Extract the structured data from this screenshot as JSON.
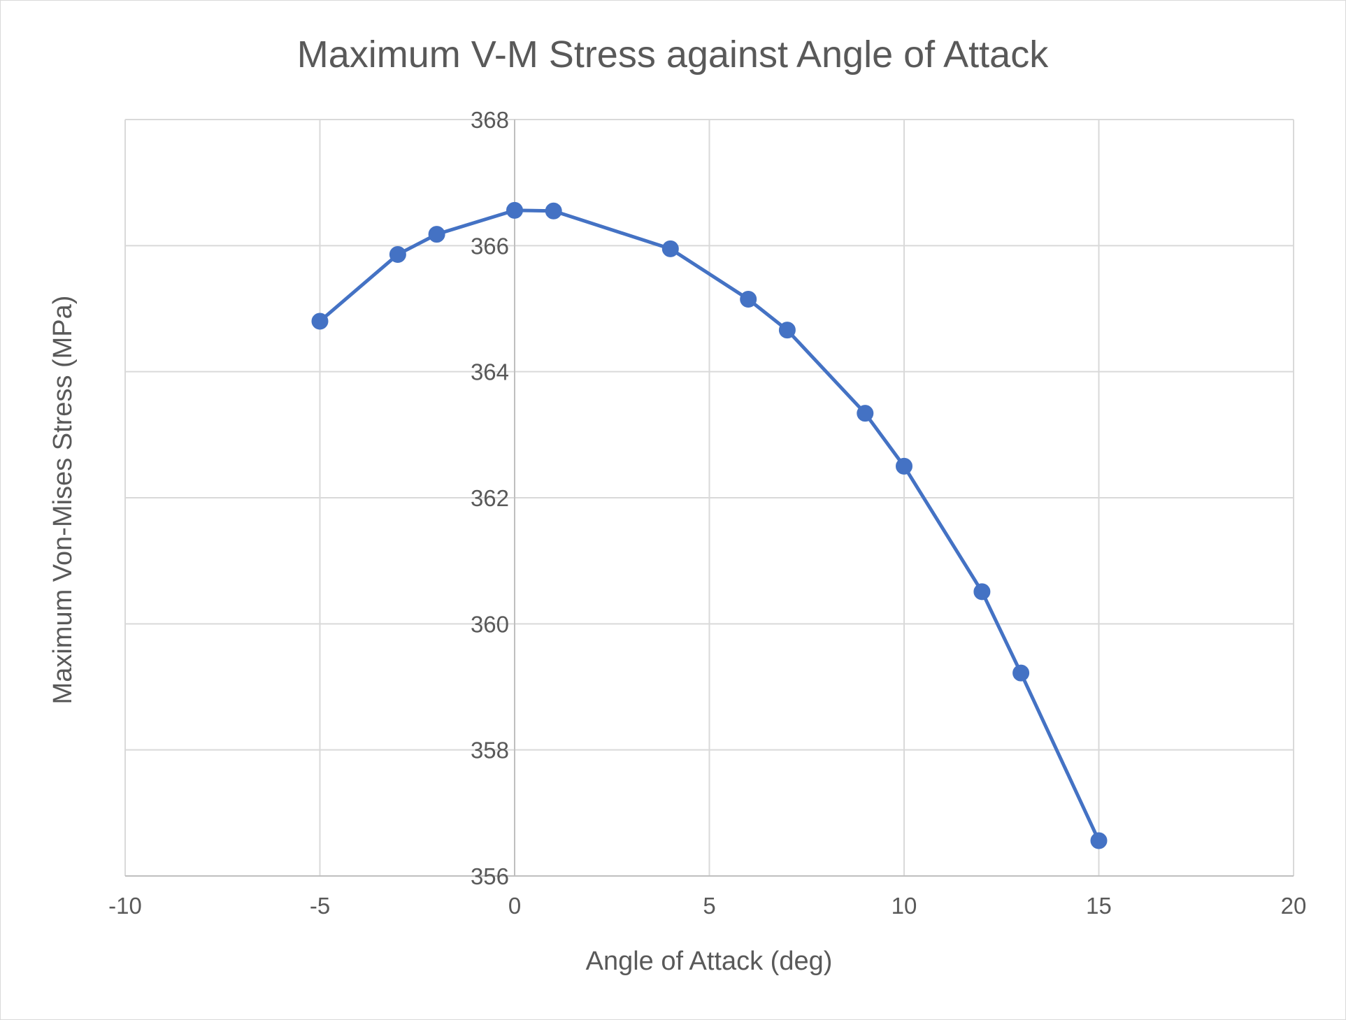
{
  "chart_data": {
    "type": "scatter",
    "mode": "lines+markers",
    "title": "Maximum V-M Stress against Angle of Attack",
    "xlabel": "Angle of Attack (deg)",
    "ylabel": "Maximum Von-Mises Stress (MPa)",
    "xlim": [
      -10,
      20
    ],
    "ylim": [
      356,
      368
    ],
    "xticks": [
      -10,
      -5,
      0,
      5,
      10,
      15,
      20
    ],
    "yticks": [
      356,
      358,
      360,
      362,
      364,
      366,
      368
    ],
    "grid": true,
    "legend": "none",
    "series": [
      {
        "color": "#4472c4",
        "points": [
          {
            "x": -5,
            "y": 364.8
          },
          {
            "x": -3,
            "y": 365.86
          },
          {
            "x": -2,
            "y": 366.18
          },
          {
            "x": 0,
            "y": 366.56
          },
          {
            "x": 1,
            "y": 366.55
          },
          {
            "x": 4,
            "y": 365.95
          },
          {
            "x": 6,
            "y": 365.15
          },
          {
            "x": 7,
            "y": 364.66
          },
          {
            "x": 9,
            "y": 363.34
          },
          {
            "x": 10,
            "y": 362.5
          },
          {
            "x": 12,
            "y": 360.51
          },
          {
            "x": 13,
            "y": 359.22
          },
          {
            "x": 15,
            "y": 356.56
          }
        ]
      }
    ]
  },
  "colors": {
    "gridline": "#d9d9d9",
    "axis_line": "#bfbfbf",
    "text": "#595959",
    "series": "#4472c4"
  }
}
